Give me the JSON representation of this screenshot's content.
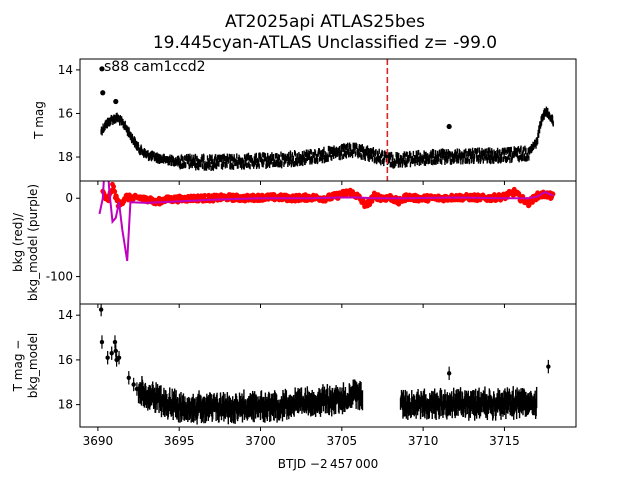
{
  "figure": {
    "title_line1": "AT2025api  ATLAS25bes",
    "title_line2": "19.445cyan-ATLAS Unclassified z= -99.0",
    "xlabel": "BTJD −2 457 000"
  },
  "chart_data": [
    {
      "type": "scatter",
      "panel": "top",
      "ylabel": "T mag",
      "annotation": "s88 cam1ccd2",
      "xlim": [
        3688.9,
        3719.4
      ],
      "ylim": [
        19.1,
        13.5
      ],
      "y_inverted": true,
      "yticks": [
        14,
        16,
        18
      ],
      "marker_vline_x": 3707.8,
      "marker_vline_color": "#d62728",
      "point_color": "#000000",
      "trend_knots": {
        "x": [
          3690.2,
          3690.5,
          3690.8,
          3691.2,
          3691.6,
          3692.0,
          3692.5,
          3693.0,
          3694.0,
          3695.0,
          3697.0,
          3699.0,
          3701.0,
          3703.0,
          3704.5,
          3705.5,
          3706.0,
          3706.7,
          3707.5,
          3708.0,
          3709.0,
          3711.0,
          3713.0,
          3715.0,
          3716.5,
          3717.0,
          3717.2,
          3717.5,
          3717.8,
          3718.0
        ],
        "y": [
          16.8,
          16.5,
          16.3,
          16.2,
          16.5,
          17.0,
          17.6,
          17.9,
          18.1,
          18.2,
          18.25,
          18.2,
          18.15,
          18.0,
          17.85,
          17.7,
          17.75,
          17.85,
          18.05,
          18.15,
          18.1,
          18.0,
          17.95,
          17.95,
          17.8,
          17.3,
          16.5,
          15.9,
          16.1,
          16.4
        ]
      },
      "outliers": [
        {
          "x": 3690.25,
          "y": 13.95
        },
        {
          "x": 3690.3,
          "y": 15.05
        },
        {
          "x": 3691.1,
          "y": 15.45
        },
        {
          "x": 3711.6,
          "y": 16.6
        }
      ]
    },
    {
      "type": "line",
      "panel": "middle",
      "ylabel": "bkg (red)/\nbkg_model (purple)",
      "xlim": [
        3688.9,
        3719.4
      ],
      "ylim": [
        -135,
        22
      ],
      "yticks": [
        0,
        -100
      ],
      "series": [
        {
          "name": "bkg",
          "color": "#ff0000",
          "x": [
            3690.3,
            3690.6,
            3690.9,
            3691.3,
            3691.7,
            3692.0,
            3692.3,
            3692.6,
            3692.9,
            3693.2,
            3693.5,
            3694.0,
            3695.0,
            3696.0,
            3697.0,
            3698.0,
            3699.0,
            3700.0,
            3701.0,
            3702.0,
            3703.0,
            3704.0,
            3704.5,
            3705.0,
            3705.5,
            3706.0,
            3706.5,
            3707.0,
            3707.5,
            3708.0,
            3708.5,
            3709.0,
            3709.5,
            3710.0,
            3711.0,
            3712.0,
            3713.0,
            3714.0,
            3715.0,
            3715.6,
            3716.0,
            3716.5,
            3717.0,
            3717.5,
            3718.0
          ],
          "values": [
            8,
            -5,
            15,
            -10,
            2,
            0,
            0,
            1,
            -2,
            0,
            -6,
            -2,
            -1,
            0,
            0,
            1,
            0,
            1,
            1,
            0,
            1,
            0,
            2,
            5,
            8,
            2,
            -10,
            3,
            0,
            1,
            -5,
            2,
            0,
            0,
            0,
            1,
            1,
            0,
            2,
            8,
            0,
            -6,
            3,
            5,
            2
          ]
        },
        {
          "name": "bkg_model",
          "color": "#bf00bf",
          "x": [
            3690.1,
            3690.3,
            3690.5,
            3690.7,
            3690.9,
            3691.1,
            3691.3,
            3691.5,
            3691.8,
            3692.0,
            3693.0,
            3695.0,
            3697.0,
            3700.0,
            3703.0,
            3705.0,
            3706.0,
            3707.0,
            3709.0,
            3712.0,
            3715.0,
            3716.5,
            3717.0,
            3717.5,
            3718.0
          ],
          "values": [
            -20,
            0,
            70,
            10,
            -30,
            -25,
            -5,
            -40,
            -80,
            -5,
            -6,
            -4,
            -2,
            0,
            0,
            1,
            1,
            0,
            0,
            1,
            0,
            0,
            2,
            8,
            3
          ]
        }
      ]
    },
    {
      "type": "scatter",
      "panel": "bottom",
      "ylabel": "T mag −\nbkg_model",
      "xlim": [
        3688.9,
        3719.4
      ],
      "ylim": [
        19.0,
        13.5
      ],
      "y_inverted": true,
      "yticks": [
        14,
        16,
        18
      ],
      "point_color": "#000000",
      "trend_knots": {
        "x": [
          3692.5,
          3693.0,
          3694.0,
          3695.0,
          3697.0,
          3699.0,
          3701.0,
          3703.0,
          3704.5,
          3705.5,
          3706.5,
          3707.5,
          3708.5,
          3709.5,
          3711.0,
          3713.0,
          3715.0,
          3716.5,
          3717.0
        ],
        "y": [
          17.3,
          17.6,
          17.9,
          18.1,
          18.15,
          18.1,
          18.05,
          17.9,
          17.8,
          17.65,
          17.5,
          17.5,
          17.95,
          18.0,
          17.95,
          17.95,
          17.95,
          17.9,
          17.9
        ]
      },
      "sparse_points": [
        {
          "x": 3690.2,
          "y": 13.75
        },
        {
          "x": 3690.25,
          "y": 15.2
        },
        {
          "x": 3690.6,
          "y": 15.9
        },
        {
          "x": 3690.85,
          "y": 15.7
        },
        {
          "x": 3691.05,
          "y": 15.2
        },
        {
          "x": 3691.1,
          "y": 15.6
        },
        {
          "x": 3691.15,
          "y": 16.0
        },
        {
          "x": 3691.3,
          "y": 15.9
        },
        {
          "x": 3691.9,
          "y": 16.8
        },
        {
          "x": 3692.2,
          "y": 17.1
        },
        {
          "x": 3692.4,
          "y": 17.3
        },
        {
          "x": 3711.6,
          "y": 16.6
        },
        {
          "x": 3717.7,
          "y": 16.3
        }
      ]
    }
  ],
  "shared_x_axis": {
    "ticks": [
      3690,
      3695,
      3700,
      3705,
      3710,
      3715
    ]
  }
}
